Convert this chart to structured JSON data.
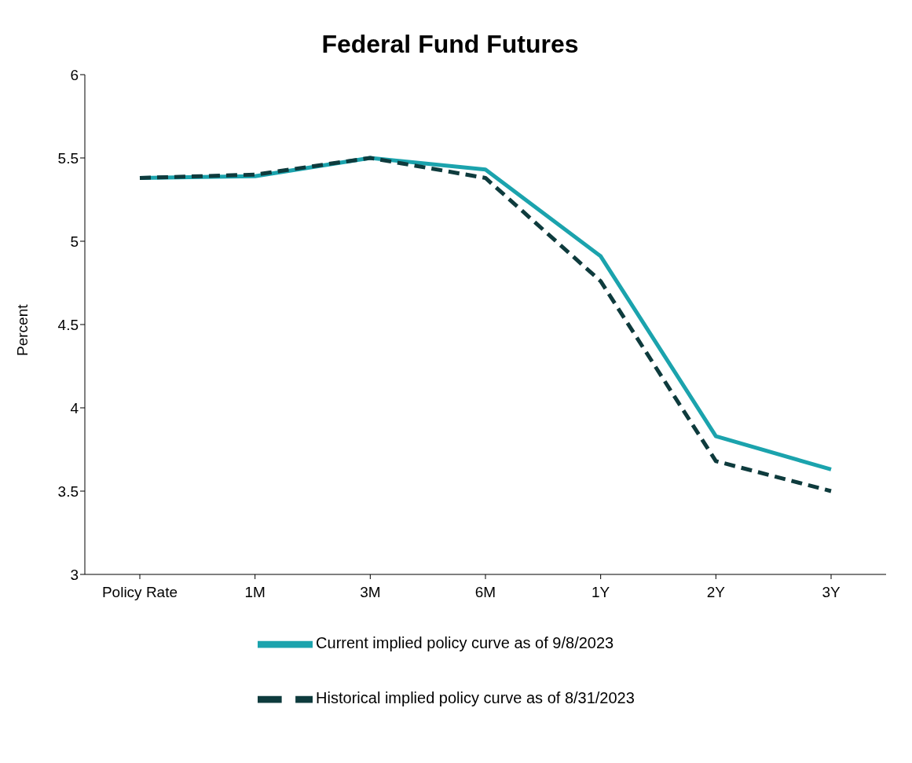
{
  "chart_data": {
    "type": "line",
    "title": "Federal Fund Futures",
    "ylabel": "Percent",
    "categories": [
      "Policy Rate",
      "1M",
      "3M",
      "6M",
      "1Y",
      "2Y",
      "3Y"
    ],
    "series": [
      {
        "name": "Current implied policy curve as of 9/8/2023",
        "color": "#1ba3ad",
        "values": [
          5.38,
          5.39,
          5.5,
          5.43,
          4.91,
          3.83,
          3.63
        ],
        "line_style": "solid"
      },
      {
        "name": "Historical implied policy curve as of 8/31/2023",
        "color": "#0e3b3d",
        "values": [
          5.38,
          5.4,
          5.5,
          5.38,
          4.76,
          3.68,
          3.5
        ],
        "line_style": "dashed"
      }
    ],
    "ylim": [
      3,
      6
    ],
    "yticks": [
      3,
      3.5,
      4,
      4.5,
      5,
      5.5,
      6
    ],
    "grid": false,
    "legend": "bottom",
    "marker": "none"
  }
}
